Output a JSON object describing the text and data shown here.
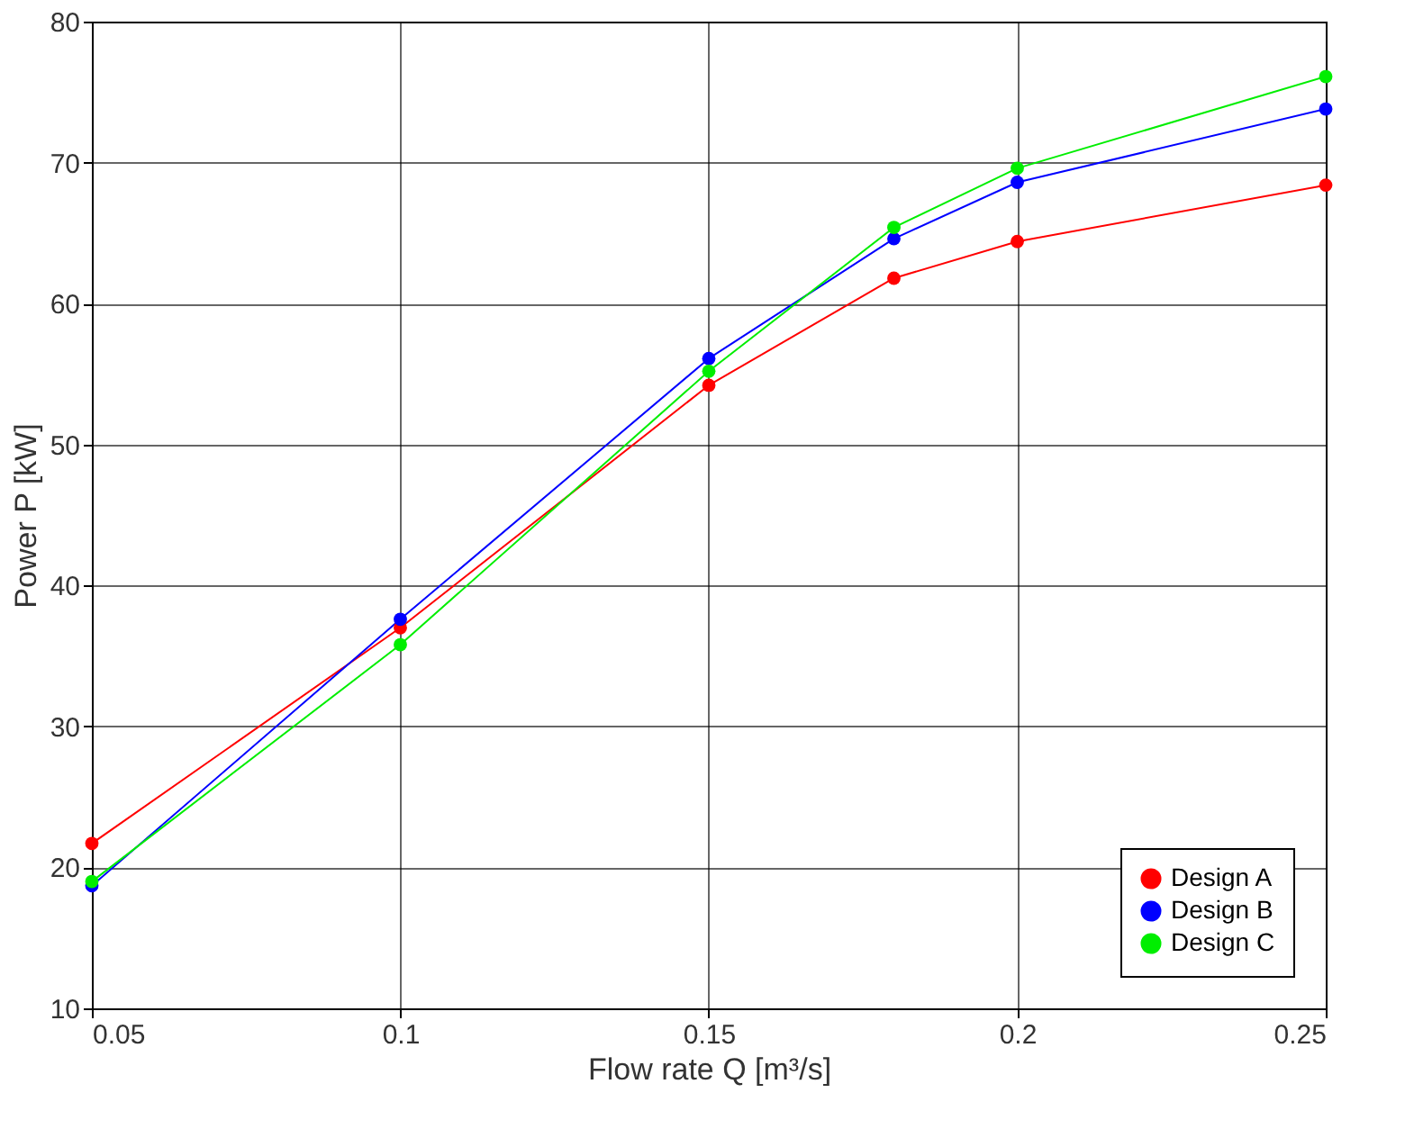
{
  "chart_data": {
    "type": "line",
    "xlabel": "Flow rate Q [m³/s]",
    "ylabel": "Power  P  [kW]",
    "x": [
      0.05,
      0.1,
      0.15,
      0.18,
      0.2,
      0.25
    ],
    "series": [
      {
        "name": "Design A",
        "color": "#ff0000",
        "values": [
          21.7,
          37.0,
          54.2,
          61.8,
          64.4,
          68.4
        ]
      },
      {
        "name": "Design B",
        "color": "#0000ff",
        "values": [
          18.7,
          37.6,
          56.1,
          64.6,
          68.6,
          73.8
        ]
      },
      {
        "name": "Design C",
        "color": "#00ee00",
        "values": [
          19.0,
          35.8,
          55.2,
          65.4,
          69.6,
          76.1
        ]
      }
    ],
    "xlim": [
      0.05,
      0.25
    ],
    "xticks": [
      0.05,
      0.1,
      0.15,
      0.2,
      0.25
    ],
    "ylim": [
      10,
      80
    ],
    "yticks": [
      10,
      20,
      30,
      40,
      50,
      60,
      70,
      80
    ],
    "grid": true,
    "legend": "bottom right",
    "marker": "circle",
    "line_style": "solid"
  }
}
